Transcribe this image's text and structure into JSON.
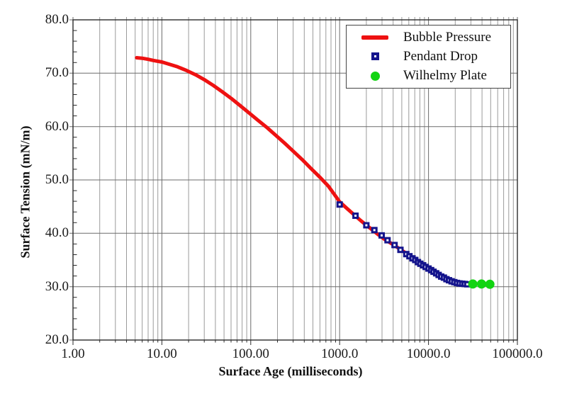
{
  "figure": {
    "background": "#ffffff"
  },
  "chart_data": {
    "type": "line",
    "title": "",
    "xlabel": "Surface Age (milliseconds)",
    "ylabel": "Surface Tension (mN/m)",
    "x_scale": "log",
    "xlim": [
      1,
      100000
    ],
    "ylim": [
      20,
      80
    ],
    "x_tick_labels": [
      "1.00",
      "10.00",
      "100.00",
      "1000.0",
      "10000.0",
      "100000.0"
    ],
    "x_tick_values": [
      1,
      10,
      100,
      1000,
      10000,
      100000
    ],
    "y_tick_labels": [
      "20.0",
      "30.0",
      "40.0",
      "50.0",
      "60.0",
      "70.0",
      "80.0"
    ],
    "y_tick_values": [
      20,
      30,
      40,
      50,
      60,
      70,
      80
    ],
    "y_minor_step": 2,
    "grid": true,
    "legend_position": "top-right",
    "colors": {
      "grid_minor": "#9b9b9b",
      "grid_major": "#6b6b6b",
      "axis": "#2a2a2a",
      "text": "#1a1a1a"
    },
    "series": [
      {
        "name": "Bubble Pressure",
        "type": "line",
        "color": "#ee1111",
        "line_width": 5,
        "points": [
          [
            5.2,
            72.9
          ],
          [
            6,
            72.8
          ],
          [
            7,
            72.6
          ],
          [
            8,
            72.4
          ],
          [
            10,
            72.1
          ],
          [
            12,
            71.7
          ],
          [
            15,
            71.2
          ],
          [
            19,
            70.5
          ],
          [
            24,
            69.7
          ],
          [
            30,
            68.8
          ],
          [
            38,
            67.7
          ],
          [
            48,
            66.5
          ],
          [
            60,
            65.3
          ],
          [
            75,
            64.0
          ],
          [
            95,
            62.6
          ],
          [
            120,
            61.2
          ],
          [
            150,
            59.9
          ],
          [
            190,
            58.4
          ],
          [
            240,
            56.9
          ],
          [
            300,
            55.4
          ],
          [
            380,
            53.8
          ],
          [
            480,
            52.1
          ],
          [
            600,
            50.5
          ],
          [
            750,
            48.8
          ],
          [
            880,
            47.2
          ],
          [
            1000,
            45.9
          ],
          [
            1200,
            44.7
          ],
          [
            1450,
            43.5
          ],
          [
            1750,
            42.3
          ],
          [
            2150,
            41.1
          ],
          [
            2650,
            39.9
          ],
          [
            3250,
            38.8
          ],
          [
            4000,
            37.9
          ],
          [
            5000,
            36.8
          ],
          [
            6200,
            35.8
          ],
          [
            7600,
            34.8
          ],
          [
            9000,
            34.1
          ]
        ]
      },
      {
        "name": "Pendant Drop",
        "type": "scatter",
        "marker": "open-square",
        "color": "#14148c",
        "marker_size": 9,
        "points": [
          [
            1000,
            45.4
          ],
          [
            1510,
            43.3
          ],
          [
            2000,
            41.5
          ],
          [
            2460,
            40.6
          ],
          [
            2970,
            39.6
          ],
          [
            3460,
            38.7
          ],
          [
            4150,
            37.8
          ],
          [
            4830,
            36.9
          ],
          [
            5630,
            36.1
          ],
          [
            6100,
            35.7
          ],
          [
            6600,
            35.3
          ],
          [
            7100,
            35.0
          ],
          [
            7600,
            34.6
          ],
          [
            8100,
            34.3
          ],
          [
            8700,
            34.0
          ],
          [
            9300,
            33.7
          ],
          [
            10000,
            33.4
          ],
          [
            10700,
            33.1
          ],
          [
            11400,
            32.8
          ],
          [
            12200,
            32.5
          ],
          [
            13000,
            32.2
          ],
          [
            13900,
            31.9
          ],
          [
            14900,
            31.7
          ],
          [
            15900,
            31.4
          ],
          [
            17000,
            31.2
          ],
          [
            18200,
            31.0
          ],
          [
            19500,
            30.85
          ],
          [
            20900,
            30.7
          ],
          [
            22300,
            30.6
          ],
          [
            23900,
            30.55
          ],
          [
            25500,
            30.5
          ],
          [
            27300,
            30.45
          ]
        ]
      },
      {
        "name": "Wilhelmy Plate",
        "type": "scatter",
        "marker": "circle",
        "color": "#12d412",
        "marker_size": 13,
        "points": [
          [
            31500,
            30.5
          ],
          [
            39500,
            30.5
          ],
          [
            49000,
            30.45
          ]
        ]
      }
    ]
  },
  "legend": {
    "border_color": "#444444"
  }
}
